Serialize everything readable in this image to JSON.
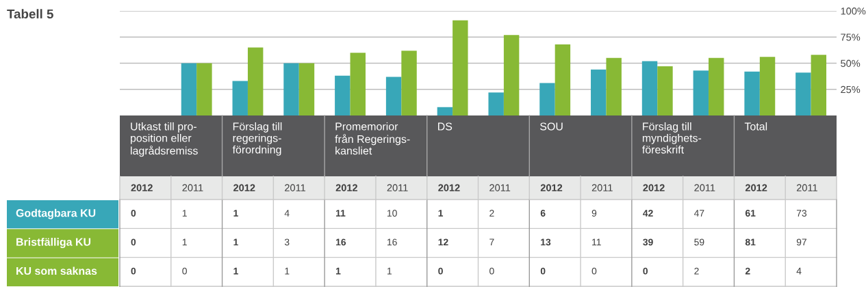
{
  "chart_data": [
    {
      "type": "bar",
      "title": "Tabell 5",
      "categories": [
        null,
        null,
        null,
        null,
        null,
        null,
        null,
        null,
        null,
        null,
        null,
        null,
        null,
        null
      ],
      "series": [
        {
          "color": "#38a7b8",
          "values": [
            0,
            50,
            33,
            50,
            38,
            37,
            8,
            22,
            31,
            44,
            52,
            43,
            42,
            41
          ]
        },
        {
          "color": "#88b935",
          "values": [
            0,
            50,
            65,
            50,
            60,
            62,
            91,
            77,
            68,
            55,
            47,
            55,
            56,
            58
          ]
        }
      ],
      "ylim": [
        0,
        100
      ],
      "yticks": [
        {
          "value": 25,
          "label": "25%"
        },
        {
          "value": 50,
          "label": "50%"
        },
        {
          "value": 75,
          "label": "75%"
        },
        {
          "value": 100,
          "label": "100%"
        }
      ],
      "grid": "y",
      "tick_labels": "y"
    },
    {
      "type": "heatmap",
      "categories": [
        "2012",
        "2011",
        "2012",
        "2011",
        "2012",
        "2011",
        "2012",
        "2011",
        "2012",
        "2011",
        "2012",
        "2011",
        "2012",
        "2011"
      ],
      "y_categories": [
        "Godtagbara KU",
        "Bristfälliga KU",
        "KU som saknas"
      ],
      "cells": [
        [
          0,
          1,
          1,
          4,
          11,
          10,
          1,
          2,
          6,
          9,
          42,
          47,
          61,
          73
        ],
        [
          0,
          1,
          1,
          3,
          16,
          16,
          12,
          7,
          13,
          11,
          39,
          59,
          81,
          97
        ],
        [
          0,
          0,
          1,
          1,
          1,
          1,
          0,
          0,
          0,
          0,
          0,
          2,
          2,
          4
        ]
      ],
      "data_labels": true,
      "annotations": [
        "Utkast till pro-\nposition eller\nlagrådsremiss",
        "Förslag till\nregerings-\nförordning",
        "Promemorior\nfrån Regerings-\nkansliet",
        "DS",
        "SOU",
        "Förslag till\nmyndighets-\nföreskrift",
        "Total"
      ]
    }
  ]
}
